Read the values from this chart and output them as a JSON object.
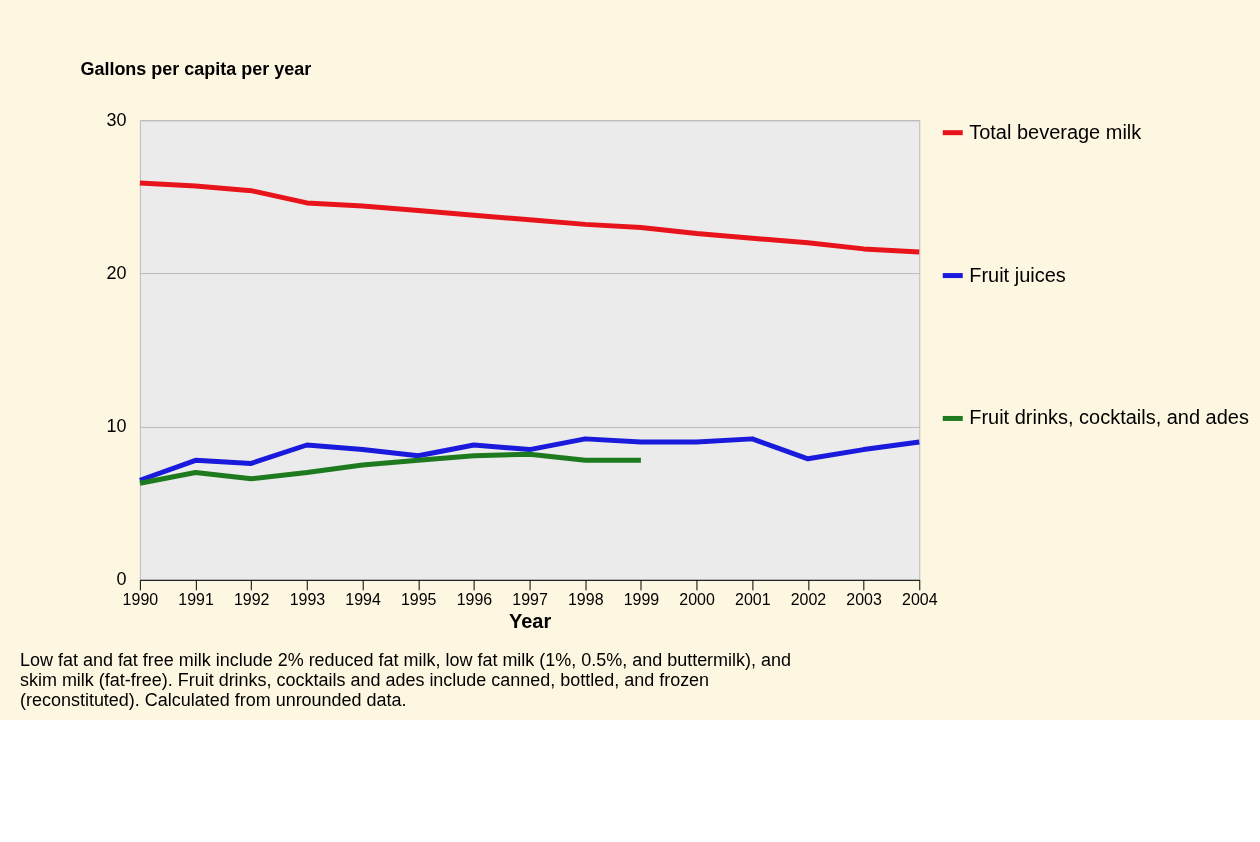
{
  "chart_data": {
    "type": "line",
    "ylabel": "Gallons per capita per year",
    "xlabel": "Year",
    "x": [
      1990,
      1991,
      1992,
      1993,
      1994,
      1995,
      1996,
      1997,
      1998,
      1999,
      2000,
      2001,
      2002,
      2003,
      2004
    ],
    "series": [
      {
        "name": "Total beverage milk",
        "color": "#e8141b",
        "values": [
          25.9,
          25.7,
          25.4,
          24.6,
          24.4,
          24.1,
          23.8,
          23.5,
          23.2,
          23.0,
          22.6,
          22.3,
          22.0,
          21.6,
          21.4
        ]
      },
      {
        "name": "Fruit juices",
        "color": "#1a1adc",
        "values": [
          6.5,
          7.8,
          7.6,
          8.8,
          8.5,
          8.1,
          8.8,
          8.5,
          9.2,
          9.0,
          9.0,
          9.2,
          7.9,
          8.5,
          9.0
        ]
      },
      {
        "name": "Fruit drinks, cocktails, and ades",
        "color": "#1e7a1e",
        "values": [
          6.3,
          7.0,
          6.6,
          7.0,
          7.5,
          7.8,
          8.1,
          8.2,
          7.8,
          7.8,
          null,
          null,
          null,
          null,
          null
        ]
      }
    ],
    "xlim": [
      1990,
      2004
    ],
    "xticks": [
      1990,
      1991,
      1992,
      1993,
      1994,
      1995,
      1996,
      1997,
      1998,
      1999,
      2000,
      2001,
      2002,
      2003,
      2004
    ],
    "ylim": [
      0,
      30
    ],
    "yticks": [
      0,
      10,
      20,
      30
    ],
    "grid": "y",
    "legend": "right",
    "marker": "none",
    "line_style": "solid",
    "annotations": [
      "Low fat and fat free milk include 2% reduced fat milk, low fat milk (1%, 0.5%, and buttermilk), and skim milk (fat-free). Fruit drinks, cocktails and ades include canned, bottled, and frozen (reconstituted).  Calculated from unrounded data."
    ]
  }
}
